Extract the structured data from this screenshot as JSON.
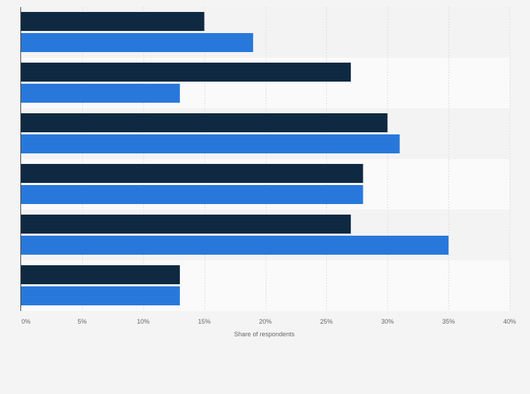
{
  "chart_data": {
    "type": "bar",
    "orientation": "horizontal",
    "categories": [
      "",
      "",
      "",
      "",
      "",
      ""
    ],
    "series": [
      {
        "color": "#0f2942",
        "values": [
          15,
          27,
          30,
          28,
          27,
          13
        ]
      },
      {
        "color": "#2878dc",
        "values": [
          19,
          13,
          31,
          28,
          35,
          13
        ]
      }
    ],
    "xlabel": "Share of respondents",
    "ylabel": "",
    "xlim": [
      0,
      40
    ],
    "xticks": [
      0,
      5,
      10,
      15,
      20,
      25,
      30,
      35,
      40
    ],
    "xtick_labels": [
      "0%",
      "5%",
      "10%",
      "15%",
      "20%",
      "25%",
      "30%",
      "35%",
      "40%"
    ],
    "grid": "vertical dashed",
    "legend": "none"
  }
}
